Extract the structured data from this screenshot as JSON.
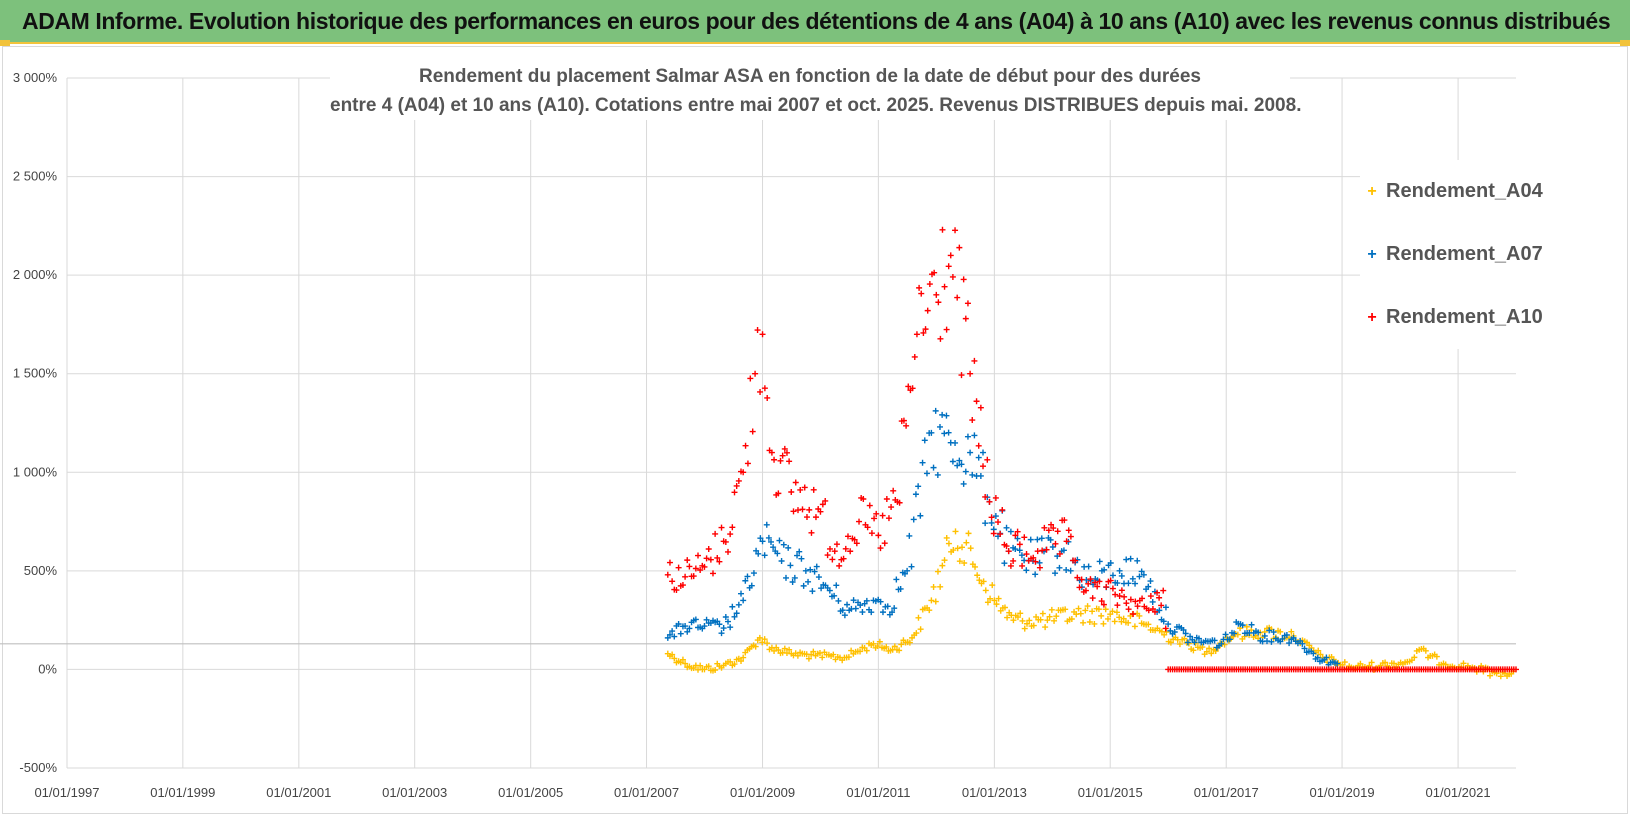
{
  "header": {
    "banner_text": "ADAM Informe. Evolution historique des performances en euros pour des détentions de 4 ans (A04) à 10 ans (A10) avec les revenus connus distribués"
  },
  "chart_data": {
    "type": "scatter",
    "title_line1": "Rendement du placement Salmar ASA en fonction de la date de début pour des durées",
    "title_line2": "entre 4 (A04) et 10 ans (A10). Cotations entre mai 2007 et oct. 2025. Revenus DISTRIBUES depuis mai. 2008.",
    "xlabel": "",
    "ylabel": "",
    "x_range": [
      "1997-01-01",
      "2022-01-01"
    ],
    "ylim": [
      -500,
      3000
    ],
    "y_ticks": [
      -500,
      0,
      500,
      1000,
      1500,
      2000,
      2500,
      3000
    ],
    "y_tick_labels": [
      "-500%",
      "0%",
      "500%",
      "1 000%",
      "1 500%",
      "2 000%",
      "2 500%",
      "3 000%"
    ],
    "x_tick_labels": [
      "01/01/1997",
      "01/01/1999",
      "01/01/2001",
      "01/01/2003",
      "01/01/2005",
      "01/01/2007",
      "01/01/2009",
      "01/01/2011",
      "01/01/2013",
      "01/01/2015",
      "01/01/2017",
      "01/01/2019",
      "01/01/2021"
    ],
    "grid": true,
    "legend_position": "right",
    "marker": "+",
    "series": [
      {
        "name": "Rendement_A04",
        "color": "#ffc000",
        "points": [
          [
            "2007-05-15",
            80
          ],
          [
            "2007-09-01",
            30
          ],
          [
            "2008-01-01",
            0
          ],
          [
            "2008-05-01",
            20
          ],
          [
            "2008-09-01",
            60
          ],
          [
            "2008-12-15",
            160
          ],
          [
            "2009-03-01",
            110
          ],
          [
            "2009-07-01",
            80
          ],
          [
            "2009-12-01",
            70
          ],
          [
            "2010-06-01",
            60
          ],
          [
            "2010-12-01",
            130
          ],
          [
            "2011-04-01",
            100
          ],
          [
            "2011-08-01",
            160
          ],
          [
            "2011-12-01",
            350
          ],
          [
            "2012-05-01",
            700
          ],
          [
            "2012-09-01",
            520
          ],
          [
            "2013-01-01",
            350
          ],
          [
            "2013-05-01",
            250
          ],
          [
            "2013-12-01",
            250
          ],
          [
            "2014-06-01",
            280
          ],
          [
            "2015-01-01",
            280
          ],
          [
            "2015-08-01",
            230
          ],
          [
            "2016-03-01",
            150
          ],
          [
            "2016-09-01",
            90
          ],
          [
            "2017-03-01",
            180
          ],
          [
            "2017-09-01",
            190
          ],
          [
            "2018-03-01",
            170
          ],
          [
            "2018-09-01",
            60
          ],
          [
            "2019-03-01",
            10
          ],
          [
            "2019-09-01",
            20
          ],
          [
            "2020-03-01",
            40
          ],
          [
            "2020-05-01",
            100
          ],
          [
            "2020-10-01",
            30
          ],
          [
            "2021-04-01",
            10
          ],
          [
            "2021-09-01",
            -20
          ],
          [
            "2021-12-15",
            -10
          ]
        ]
      },
      {
        "name": "Rendement_A07",
        "color": "#0070c0",
        "points": [
          [
            "2007-05-15",
            160
          ],
          [
            "2007-09-01",
            220
          ],
          [
            "2008-01-01",
            220
          ],
          [
            "2008-05-01",
            210
          ],
          [
            "2008-09-01",
            350
          ],
          [
            "2009-01-01",
            650
          ],
          [
            "2009-05-01",
            550
          ],
          [
            "2009-10-01",
            500
          ],
          [
            "2010-03-01",
            400
          ],
          [
            "2010-07-01",
            300
          ],
          [
            "2010-12-01",
            350
          ],
          [
            "2011-03-01",
            320
          ],
          [
            "2011-07-01",
            500
          ],
          [
            "2011-12-01",
            1200
          ],
          [
            "2012-04-01",
            1150
          ],
          [
            "2012-08-01",
            1100
          ],
          [
            "2012-12-01",
            850
          ],
          [
            "2013-04-01",
            600
          ],
          [
            "2013-09-01",
            550
          ],
          [
            "2014-03-01",
            600
          ],
          [
            "2014-09-01",
            450
          ],
          [
            "2015-03-01",
            500
          ],
          [
            "2015-08-01",
            480
          ],
          [
            "2016-01-01",
            230
          ],
          [
            "2016-06-01",
            150
          ],
          [
            "2016-12-01",
            130
          ],
          [
            "2017-04-01",
            230
          ],
          [
            "2017-09-01",
            170
          ],
          [
            "2018-03-01",
            160
          ],
          [
            "2018-08-01",
            60
          ],
          [
            "2018-12-01",
            30
          ]
        ]
      },
      {
        "name": "Rendement_A10",
        "color": "#ff0000",
        "points": [
          [
            "2007-05-15",
            480
          ],
          [
            "2007-09-01",
            470
          ],
          [
            "2008-01-01",
            520
          ],
          [
            "2008-05-01",
            650
          ],
          [
            "2008-09-01",
            1000
          ],
          [
            "2008-11-15",
            1500
          ],
          [
            "2009-01-01",
            1700
          ],
          [
            "2009-03-01",
            1100
          ],
          [
            "2009-07-01",
            900
          ],
          [
            "2010-01-01",
            800
          ],
          [
            "2010-04-01",
            600
          ],
          [
            "2010-09-01",
            750
          ],
          [
            "2011-01-01",
            680
          ],
          [
            "2011-05-01",
            850
          ],
          [
            "2011-09-01",
            1700
          ],
          [
            "2012-01-01",
            1900
          ],
          [
            "2012-04-01",
            2100
          ],
          [
            "2012-08-01",
            1500
          ],
          [
            "2012-12-01",
            850
          ],
          [
            "2013-04-01",
            600
          ],
          [
            "2013-10-01",
            600
          ],
          [
            "2014-04-01",
            650
          ],
          [
            "2014-08-01",
            400
          ],
          [
            "2015-02-01",
            380
          ],
          [
            "2015-09-01",
            300
          ],
          [
            "2015-12-01",
            400
          ],
          [
            "2016-01-01",
            0
          ],
          [
            "2022-01-01",
            0
          ]
        ]
      }
    ]
  }
}
